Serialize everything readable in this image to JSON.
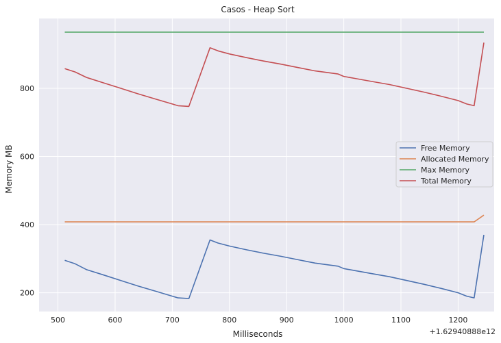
{
  "chart_data": {
    "type": "line",
    "title": "Casos - Heap Sort",
    "xlabel": "Milliseconds",
    "ylabel": "Memory MB",
    "x_offset_label": "+1.62940888e12",
    "xlim": [
      467,
      1263
    ],
    "ylim": [
      145,
      1005
    ],
    "xticks": [
      500,
      600,
      700,
      800,
      900,
      1000,
      1100,
      1200
    ],
    "yticks": [
      200,
      400,
      600,
      800
    ],
    "grid": true,
    "legend_position": "center-right",
    "series": [
      {
        "name": "Free Memory",
        "color": "#4c72b0",
        "x": [
          512,
          530,
          550,
          580,
          610,
          640,
          670,
          700,
          710,
          729,
          766,
          780,
          800,
          830,
          860,
          890,
          920,
          950,
          990,
          1000,
          1020,
          1050,
          1080,
          1110,
          1140,
          1170,
          1200,
          1215,
          1228,
          1245
        ],
        "y": [
          295,
          285,
          268,
          252,
          236,
          220,
          205,
          190,
          185,
          183,
          355,
          346,
          337,
          326,
          316,
          307,
          297,
          287,
          278,
          271,
          265,
          256,
          247,
          236,
          225,
          213,
          200,
          190,
          185,
          370
        ]
      },
      {
        "name": "Allocated Memory",
        "color": "#dd8452",
        "x": [
          512,
          600,
          700,
          800,
          900,
          1000,
          1100,
          1228,
          1245
        ],
        "y": [
          408,
          408,
          408,
          408,
          408,
          408,
          408,
          408,
          428
        ]
      },
      {
        "name": "Max Memory",
        "color": "#55a868",
        "x": [
          512,
          1245
        ],
        "y": [
          965,
          965
        ]
      },
      {
        "name": "Total Memory",
        "color": "#c44e52",
        "x": [
          512,
          530,
          550,
          580,
          610,
          640,
          670,
          700,
          710,
          729,
          766,
          780,
          800,
          830,
          860,
          890,
          920,
          950,
          990,
          1000,
          1020,
          1050,
          1080,
          1110,
          1140,
          1170,
          1200,
          1215,
          1228,
          1245
        ],
        "y": [
          858,
          848,
          832,
          816,
          800,
          784,
          769,
          754,
          749,
          747,
          919,
          910,
          901,
          890,
          880,
          871,
          861,
          851,
          842,
          835,
          829,
          820,
          811,
          800,
          789,
          777,
          764,
          754,
          749,
          934
        ]
      }
    ]
  }
}
